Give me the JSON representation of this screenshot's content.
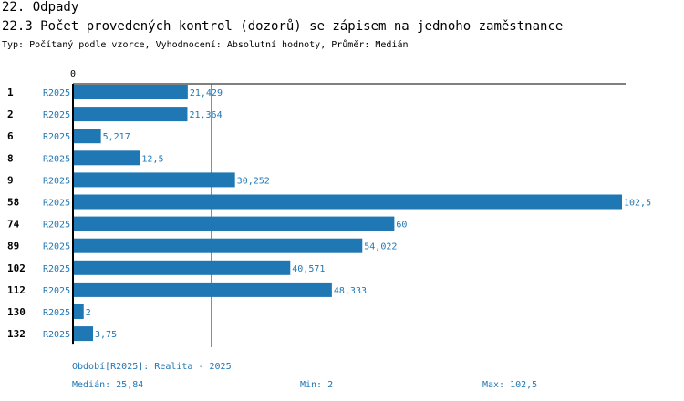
{
  "header": {
    "section": "22. Odpady",
    "title": "22.3 Počet provedených kontrol (dozorů) se zápisem na jednoho zaměstnance",
    "subtitle": "Typ: Počítaný podle vzorce, Vyhodnocení: Absolutní hodnoty, Průměr: Medián"
  },
  "chart_data": {
    "type": "bar",
    "orientation": "horizontal",
    "title": "22.3 Počet provedených kontrol (dozorů) se zápisem na jednoho zaměstnance",
    "xlim": [
      0,
      102.5
    ],
    "x_tick_labels": [
      "0"
    ],
    "median": 25.84,
    "series_label": "R2025",
    "categories": [
      "1",
      "2",
      "6",
      "8",
      "9",
      "58",
      "74",
      "89",
      "102",
      "112",
      "130",
      "132"
    ],
    "values": [
      21.429,
      21.364,
      5.217,
      12.5,
      30.252,
      102.5,
      60,
      54.022,
      40.571,
      48.333,
      2,
      3.75
    ],
    "value_labels": [
      "21,429",
      "21,364",
      "5,217",
      "12,5",
      "30,252",
      "102,5",
      "60",
      "54,022",
      "40,571",
      "48,333",
      "2",
      "3,75"
    ],
    "colors": {
      "bar": "#1f77b4",
      "text": "#1f77b4",
      "axis": "#000000"
    }
  },
  "footer": {
    "period": "Období[R2025]: Realita - 2025",
    "median": "Medián: 25,84",
    "min": "Min: 2",
    "max": "Max: 102,5"
  }
}
